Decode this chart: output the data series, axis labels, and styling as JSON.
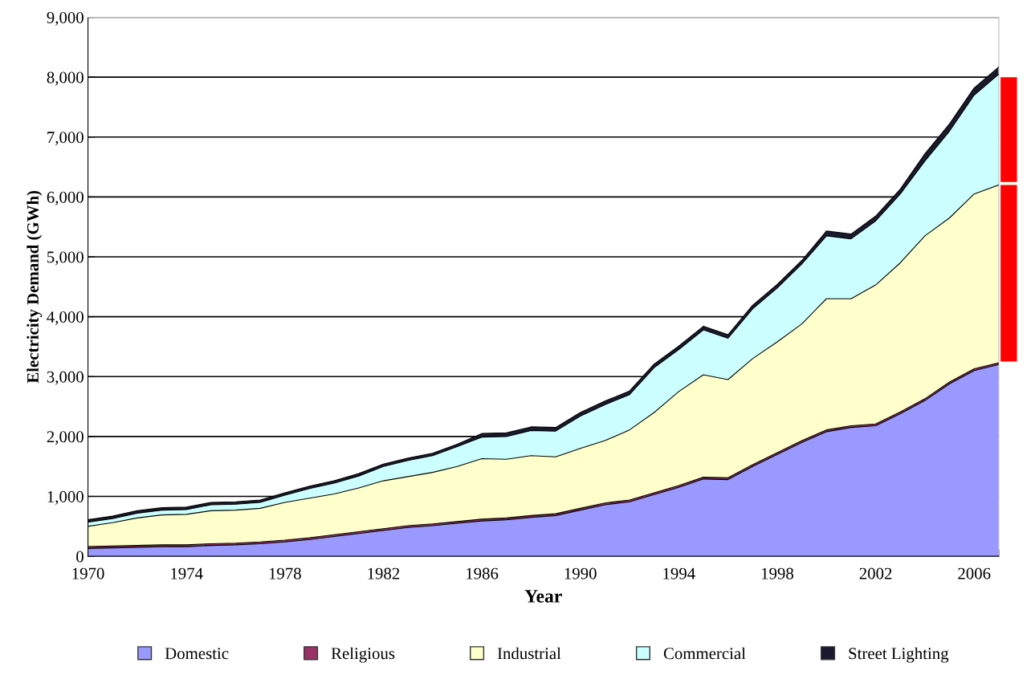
{
  "chart_data": {
    "type": "area",
    "stacked": true,
    "xlabel": "Year",
    "ylabel": "Electricity Demand (GWh)",
    "x": [
      1970,
      1971,
      1972,
      1973,
      1974,
      1975,
      1976,
      1977,
      1978,
      1979,
      1980,
      1981,
      1982,
      1983,
      1984,
      1985,
      1986,
      1987,
      1988,
      1989,
      1990,
      1991,
      1992,
      1993,
      1994,
      1995,
      1996,
      1997,
      1998,
      1999,
      2000,
      2001,
      2002,
      2003,
      2004,
      2005,
      2006,
      2007
    ],
    "series": [
      {
        "name": "Domestic",
        "color": "#9999ff",
        "values": [
          130,
          140,
          150,
          160,
          160,
          180,
          190,
          210,
          240,
          280,
          330,
          380,
          430,
          480,
          510,
          550,
          590,
          610,
          650,
          680,
          770,
          860,
          910,
          1030,
          1150,
          1290,
          1280,
          1500,
          1700,
          1900,
          2080,
          2150,
          2180,
          2380,
          2600,
          2880,
          3100,
          3200
        ]
      },
      {
        "name": "Religious",
        "color": "#993366",
        "values": [
          30,
          30,
          30,
          30,
          30,
          30,
          30,
          30,
          30,
          30,
          30,
          30,
          30,
          30,
          30,
          30,
          30,
          30,
          30,
          30,
          30,
          30,
          30,
          30,
          30,
          30,
          30,
          30,
          30,
          30,
          30,
          30,
          30,
          30,
          30,
          30,
          30,
          30
        ]
      },
      {
        "name": "Industrial",
        "color": "#ffffcc",
        "values": [
          340,
          390,
          460,
          500,
          510,
          550,
          550,
          560,
          630,
          660,
          680,
          730,
          800,
          820,
          860,
          920,
          1010,
          980,
          1000,
          950,
          1000,
          1040,
          1170,
          1340,
          1570,
          1710,
          1640,
          1770,
          1850,
          1950,
          2190,
          2120,
          2320,
          2490,
          2720,
          2740,
          2920,
          2970
        ]
      },
      {
        "name": "Commercial",
        "color": "#ccffff",
        "values": [
          70,
          70,
          80,
          80,
          80,
          100,
          100,
          100,
          120,
          160,
          180,
          200,
          240,
          270,
          280,
          330,
          360,
          380,
          420,
          430,
          540,
          600,
          590,
          750,
          700,
          750,
          690,
          830,
          900,
          1000,
          1050,
          1000,
          1070,
          1150,
          1250,
          1450,
          1650,
          1850
        ]
      },
      {
        "name": "Street Lighting",
        "color": "#1a1a2e",
        "values": [
          40,
          40,
          40,
          40,
          40,
          40,
          40,
          40,
          40,
          40,
          40,
          40,
          40,
          40,
          40,
          40,
          60,
          60,
          60,
          60,
          60,
          60,
          60,
          60,
          60,
          60,
          60,
          60,
          60,
          60,
          80,
          80,
          80,
          80,
          120,
          120,
          120,
          120
        ]
      }
    ],
    "xlim": [
      1970,
      2007
    ],
    "xticks": [
      1970,
      {
        "value": 1971,
        "label": null
      },
      {
        "value": 1972,
        "label": null
      },
      {
        "value": 1973,
        "label": null
      },
      1974,
      {
        "value": 1975,
        "label": null
      },
      {
        "value": 1976,
        "label": null
      },
      {
        "value": 1977,
        "label": null
      },
      1978,
      {
        "value": 1979,
        "label": null
      },
      {
        "value": 1980,
        "label": null
      },
      {
        "value": 1981,
        "label": null
      },
      1982,
      {
        "value": 1983,
        "label": null
      },
      {
        "value": 1984,
        "label": null
      },
      {
        "value": 1985,
        "label": null
      },
      1986,
      {
        "value": 1987,
        "label": null
      },
      {
        "value": 1988,
        "label": null
      },
      {
        "value": 1989,
        "label": null
      },
      1990,
      {
        "value": 1991,
        "label": null
      },
      {
        "value": 1992,
        "label": null
      },
      {
        "value": 1993,
        "label": null
      },
      1994,
      {
        "value": 1995,
        "label": null
      },
      {
        "value": 1996,
        "label": null
      },
      {
        "value": 1997,
        "label": null
      },
      1998,
      {
        "value": 1999,
        "label": null
      },
      {
        "value": 2000,
        "label": null
      },
      {
        "value": 2001,
        "label": null
      },
      2002,
      {
        "value": 2003,
        "label": null
      },
      {
        "value": 2004,
        "label": null
      },
      {
        "value": 2005,
        "label": null
      },
      2006,
      {
        "value": 2007,
        "label": null
      }
    ],
    "ylim": [
      0,
      9000
    ],
    "yticks": [
      0,
      {
        "value": 1000,
        "label": "1,000"
      },
      {
        "value": 2000,
        "label": "2,000"
      },
      {
        "value": 3000,
        "label": "3,000"
      },
      {
        "value": 4000,
        "label": "4,000"
      },
      {
        "value": 5000,
        "label": "5,000"
      },
      {
        "value": 6000,
        "label": "6,000"
      },
      {
        "value": 7000,
        "label": "7,000"
      },
      {
        "value": 8000,
        "label": "8,000"
      },
      {
        "value": 9000,
        "label": "9,000"
      }
    ],
    "grid": "y",
    "legend": "bottom"
  }
}
